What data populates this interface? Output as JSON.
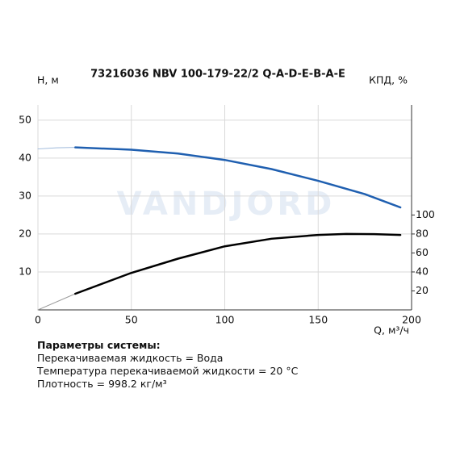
{
  "chart_data": {
    "type": "line",
    "title": "73216036 NBV 100-179-22/2 Q-A-D-E-B-A-E",
    "watermark": "VANDJORD",
    "y_label": "H, м",
    "y2_label": "КПД, %",
    "x_label": "Q, м³/ч",
    "xlim": [
      0,
      200
    ],
    "xticks": [
      0,
      50,
      100,
      150,
      200
    ],
    "ylim": [
      0,
      54
    ],
    "yticks": [
      10,
      20,
      30,
      40,
      50
    ],
    "y2lim": [
      0,
      216
    ],
    "y2ticks": [
      20,
      40,
      60,
      80,
      100
    ],
    "grid": true,
    "series": [
      {
        "color": "#9db8da",
        "line_width": 1,
        "x": [
          0,
          10,
          20
        ],
        "values": [
          42.4,
          42.7,
          42.8
        ]
      },
      {
        "color": "#1f5fb0",
        "line_width": 2.5,
        "x": [
          20,
          50,
          75,
          100,
          125,
          150,
          175,
          194
        ],
        "values": [
          42.8,
          42.2,
          41.2,
          39.5,
          37.1,
          34,
          30.5,
          27
        ]
      },
      {
        "color": "#9a9a9a",
        "line_width": 1,
        "axis": "y2",
        "x": [
          0,
          20
        ],
        "values": [
          0,
          17
        ]
      },
      {
        "color": "#000000",
        "line_width": 2.5,
        "axis": "y2",
        "x": [
          20,
          50,
          75,
          100,
          125,
          150,
          165,
          180,
          194
        ],
        "values": [
          17,
          39,
          54,
          67,
          75,
          79,
          80,
          79.8,
          79
        ]
      }
    ]
  },
  "info": {
    "heading": "Параметры системы:",
    "lines": [
      "Перекачиваемая жидкость = Вода",
      "Температура перекачиваемой жидкости = 20 °C",
      "Плотность = 998.2 кг/м³"
    ]
  }
}
